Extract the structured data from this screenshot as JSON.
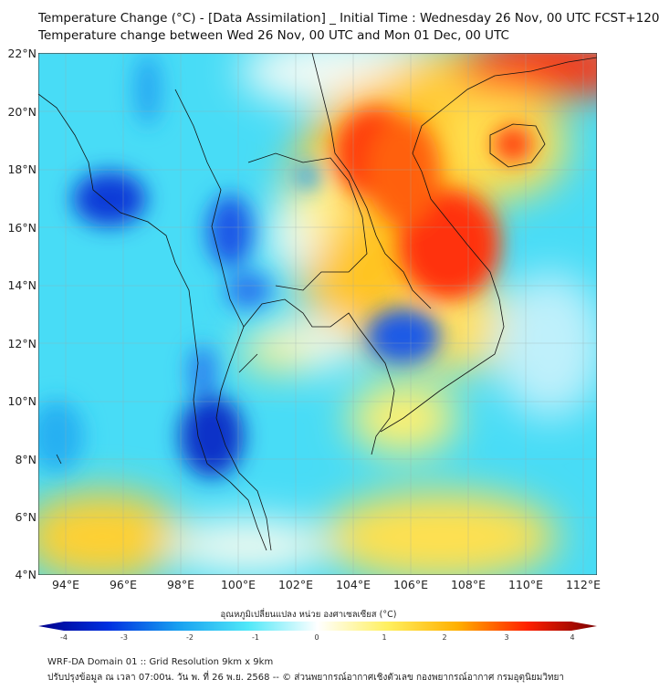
{
  "title": {
    "line1": "Temperature Change (°C) - [Data Assimilation] _ Initial Time : Wednesday 26 Nov, 00 UTC FCST+120",
    "line2": "Temperature change between Wed 26 Nov, 00 UTC and Mon 01 Dec, 00 UTC"
  },
  "map": {
    "lat_labels": [
      "22°N",
      "20°N",
      "18°N",
      "16°N",
      "14°N",
      "12°N",
      "10°N",
      "8°N",
      "6°N",
      "4°N"
    ],
    "lon_labels": [
      "94°E",
      "96°E",
      "98°E",
      "100°E",
      "102°E",
      "104°E",
      "106°E",
      "108°E",
      "110°E",
      "112°E"
    ]
  },
  "colorbar": {
    "title": "อุณหภูมิเปลี่ยนแปลง หน่วย องศาเซลเซียส (°C)",
    "ticks": [
      "-4",
      "-3",
      "-2",
      "-1",
      "0",
      "1",
      "2",
      "3",
      "4"
    ],
    "range": [
      -4,
      4
    ],
    "colors": [
      "#00008b",
      "#0030e0",
      "#18a0f0",
      "#50e8f8",
      "#ffffff",
      "#fff060",
      "#ffb000",
      "#ff2000",
      "#7a0000"
    ]
  },
  "footer": {
    "line1": "WRF-DA Domain 01 :: Grid Resolution 9km x 9km",
    "line2": "ปรับปรุงข้อมูล ณ เวลา 07:00น. วัน พ. ที่ 26 พ.ย. 2568 -- © ส่วนพยากรณ์อากาศเชิงตัวเลข กองพยากรณ์อากาศ กรมอุตุนิยมวิทยา"
  }
}
